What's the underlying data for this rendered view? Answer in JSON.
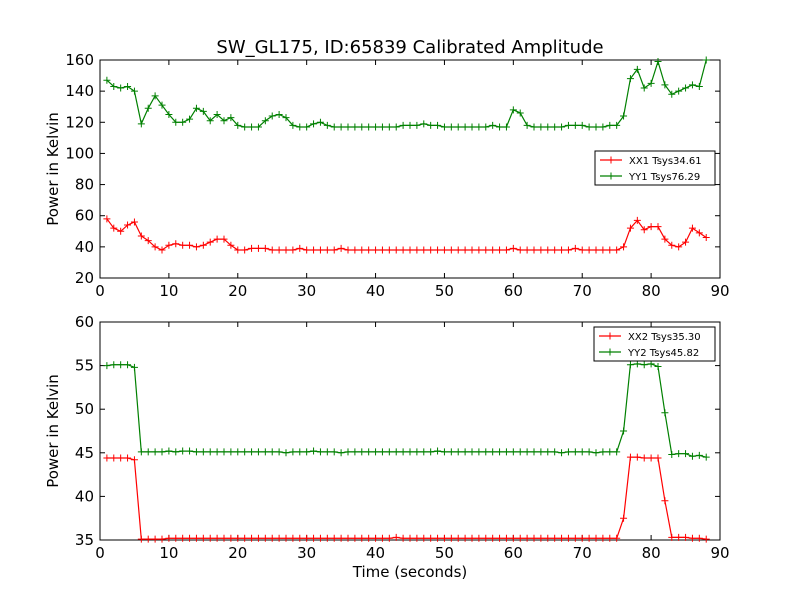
{
  "chart_data": [
    {
      "type": "line",
      "title": "SW_GL175, ID:65839 Calibrated Amplitude",
      "xlabel": "",
      "ylabel": "Power in Kelvin",
      "xlim": [
        0,
        90
      ],
      "ylim": [
        20,
        160
      ],
      "xticks": [
        0,
        10,
        20,
        30,
        40,
        50,
        60,
        70,
        80,
        90
      ],
      "yticks": [
        20,
        40,
        60,
        80,
        100,
        120,
        140,
        160
      ],
      "grid": false,
      "legend_position": "center-right",
      "x": [
        1,
        2,
        3,
        4,
        5,
        6,
        7,
        8,
        9,
        10,
        11,
        12,
        13,
        14,
        15,
        16,
        17,
        18,
        19,
        20,
        21,
        22,
        23,
        24,
        25,
        26,
        27,
        28,
        29,
        30,
        31,
        32,
        33,
        34,
        35,
        36,
        37,
        38,
        39,
        40,
        41,
        42,
        43,
        44,
        45,
        46,
        47,
        48,
        49,
        50,
        51,
        52,
        53,
        54,
        55,
        56,
        57,
        58,
        59,
        60,
        61,
        62,
        63,
        64,
        65,
        66,
        67,
        68,
        69,
        70,
        71,
        72,
        73,
        74,
        75,
        76,
        77,
        78,
        79,
        80,
        81,
        82,
        83,
        84,
        85,
        86,
        87,
        88
      ],
      "series": [
        {
          "name": "XX1 Tsys34.61",
          "color": "#ff0000",
          "values": [
            58,
            52,
            50,
            54,
            56,
            47,
            44,
            40,
            38,
            41,
            42,
            41,
            41,
            40,
            41,
            43,
            45,
            45,
            41,
            38,
            38,
            39,
            39,
            39,
            38,
            38,
            38,
            38,
            39,
            38,
            38,
            38,
            38,
            38,
            39,
            38,
            38,
            38,
            38,
            38,
            38,
            38,
            38,
            38,
            38,
            38,
            38,
            38,
            38,
            38,
            38,
            38,
            38,
            38,
            38,
            38,
            38,
            38,
            38,
            39,
            38,
            38,
            38,
            38,
            38,
            38,
            38,
            38,
            39,
            38,
            38,
            38,
            38,
            38,
            38,
            40,
            52,
            57,
            51,
            53,
            53,
            45,
            41,
            40,
            43,
            52,
            49,
            46
          ]
        },
        {
          "name": "YY1 Tsys76.29",
          "color": "#008000",
          "values": [
            147,
            143,
            142,
            143,
            140,
            119,
            129,
            137,
            131,
            125,
            120,
            120,
            122,
            129,
            127,
            121,
            125,
            121,
            123,
            118,
            117,
            117,
            117,
            121,
            124,
            125,
            123,
            118,
            117,
            117,
            119,
            120,
            118,
            117,
            117,
            117,
            117,
            117,
            117,
            117,
            117,
            117,
            117,
            118,
            118,
            118,
            119,
            118,
            118,
            117,
            117,
            117,
            117,
            117,
            117,
            117,
            118,
            117,
            117,
            128,
            126,
            118,
            117,
            117,
            117,
            117,
            117,
            118,
            118,
            118,
            117,
            117,
            117,
            118,
            118,
            124,
            148,
            154,
            142,
            145,
            159,
            144,
            138,
            140,
            142,
            144,
            143,
            160
          ]
        }
      ]
    },
    {
      "type": "line",
      "title": "",
      "xlabel": "Time (seconds)",
      "ylabel": "Power in Kelvin",
      "xlim": [
        0,
        90
      ],
      "ylim": [
        35,
        60
      ],
      "xticks": [
        0,
        10,
        20,
        30,
        40,
        50,
        60,
        70,
        80,
        90
      ],
      "yticks": [
        35,
        40,
        45,
        50,
        55,
        60
      ],
      "grid": false,
      "legend_position": "top-right",
      "x": [
        1,
        2,
        3,
        4,
        5,
        6,
        7,
        8,
        9,
        10,
        11,
        12,
        13,
        14,
        15,
        16,
        17,
        18,
        19,
        20,
        21,
        22,
        23,
        24,
        25,
        26,
        27,
        28,
        29,
        30,
        31,
        32,
        33,
        34,
        35,
        36,
        37,
        38,
        39,
        40,
        41,
        42,
        43,
        44,
        45,
        46,
        47,
        48,
        49,
        50,
        51,
        52,
        53,
        54,
        55,
        56,
        57,
        58,
        59,
        60,
        61,
        62,
        63,
        64,
        65,
        66,
        67,
        68,
        69,
        70,
        71,
        72,
        73,
        74,
        75,
        76,
        77,
        78,
        79,
        80,
        81,
        82,
        83,
        84,
        85,
        86,
        87,
        88
      ],
      "series": [
        {
          "name": "XX2 Tsys35.30",
          "color": "#ff0000",
          "values": [
            44.4,
            44.4,
            44.4,
            44.4,
            44.2,
            35.1,
            35.1,
            35.1,
            35.1,
            35.2,
            35.2,
            35.2,
            35.2,
            35.2,
            35.2,
            35.2,
            35.2,
            35.2,
            35.2,
            35.2,
            35.2,
            35.2,
            35.2,
            35.2,
            35.2,
            35.2,
            35.2,
            35.2,
            35.2,
            35.2,
            35.2,
            35.2,
            35.2,
            35.2,
            35.2,
            35.2,
            35.2,
            35.2,
            35.2,
            35.2,
            35.2,
            35.2,
            35.3,
            35.2,
            35.2,
            35.2,
            35.2,
            35.2,
            35.2,
            35.2,
            35.2,
            35.2,
            35.2,
            35.2,
            35.2,
            35.2,
            35.2,
            35.2,
            35.2,
            35.2,
            35.2,
            35.2,
            35.2,
            35.2,
            35.2,
            35.2,
            35.2,
            35.2,
            35.2,
            35.2,
            35.2,
            35.2,
            35.2,
            35.2,
            35.2,
            37.5,
            44.5,
            44.5,
            44.4,
            44.4,
            44.4,
            39.5,
            35.3,
            35.3,
            35.3,
            35.2,
            35.2,
            35.1
          ]
        },
        {
          "name": "YY2 Tsys45.82",
          "color": "#008000",
          "values": [
            55.0,
            55.1,
            55.1,
            55.1,
            54.8,
            45.1,
            45.1,
            45.1,
            45.1,
            45.2,
            45.1,
            45.2,
            45.2,
            45.1,
            45.1,
            45.1,
            45.1,
            45.1,
            45.1,
            45.1,
            45.1,
            45.1,
            45.1,
            45.1,
            45.1,
            45.1,
            45.0,
            45.1,
            45.1,
            45.1,
            45.2,
            45.1,
            45.1,
            45.1,
            45.0,
            45.1,
            45.1,
            45.1,
            45.1,
            45.1,
            45.1,
            45.1,
            45.1,
            45.1,
            45.1,
            45.1,
            45.1,
            45.1,
            45.2,
            45.1,
            45.1,
            45.1,
            45.1,
            45.1,
            45.1,
            45.1,
            45.1,
            45.1,
            45.1,
            45.1,
            45.1,
            45.1,
            45.1,
            45.1,
            45.1,
            45.1,
            45.0,
            45.1,
            45.1,
            45.1,
            45.1,
            45.0,
            45.1,
            45.1,
            45.1,
            47.5,
            55.1,
            55.2,
            55.1,
            55.2,
            54.9,
            49.6,
            44.8,
            44.9,
            44.9,
            44.6,
            44.7,
            44.5
          ]
        }
      ]
    }
  ]
}
